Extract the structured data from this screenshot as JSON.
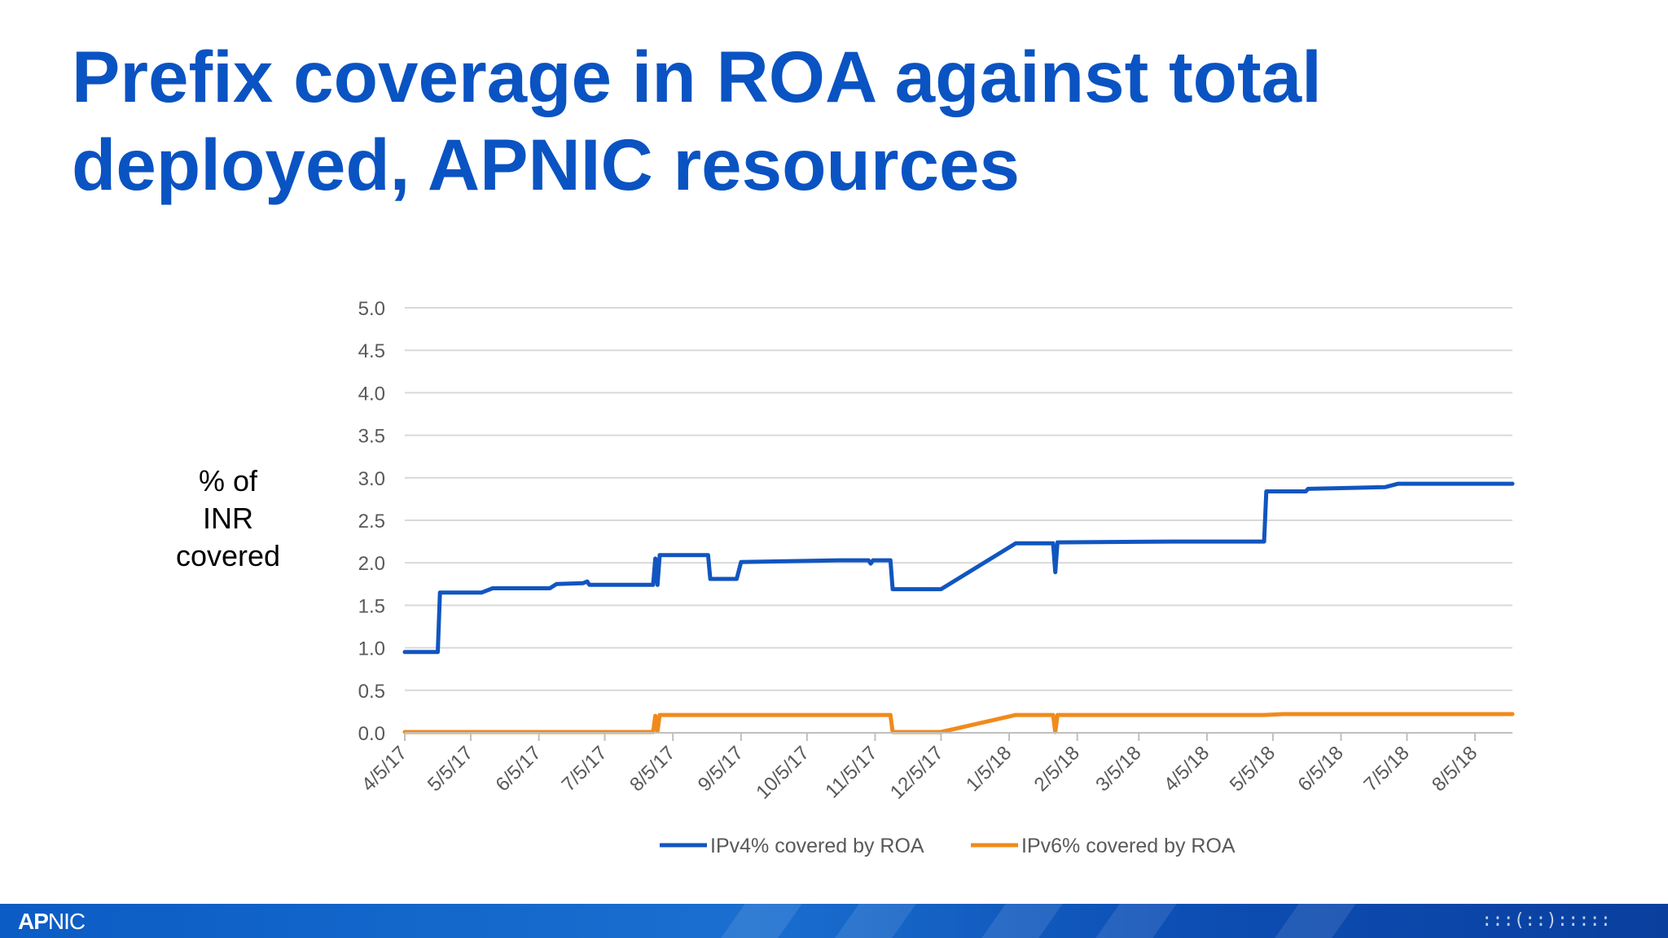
{
  "slide": {
    "title": "Prefix coverage in ROA against total deployed, APNIC resources"
  },
  "footer": {
    "logo_bold": "AP",
    "logo_rest": "NIC",
    "mark_icon": "ipv6-logo-icon"
  },
  "colors": {
    "title": "#0a53c2",
    "ipv4": "#1155c0",
    "ipv6": "#f08a1c",
    "grid": "#d9d9d9"
  },
  "chart_data": {
    "type": "line",
    "ylabel": "% of INR covered",
    "ylabel_lines": [
      "% of",
      "INR",
      "covered"
    ],
    "ylim": [
      0,
      5
    ],
    "yticks": [
      "0.0",
      "0.5",
      "1.0",
      "1.5",
      "2.0",
      "2.5",
      "3.0",
      "3.5",
      "4.0",
      "4.5",
      "5.0"
    ],
    "grid": true,
    "legend": "bottom",
    "xlim": [
      "2017-04-05",
      "2018-08-22"
    ],
    "xtick_values": [
      "2017-04-05",
      "2017-05-05",
      "2017-06-05",
      "2017-07-05",
      "2017-08-05",
      "2017-09-05",
      "2017-10-05",
      "2017-11-05",
      "2017-12-05",
      "2018-01-05",
      "2018-02-05",
      "2018-03-05",
      "2018-04-05",
      "2018-05-05",
      "2018-06-05",
      "2018-07-05",
      "2018-08-05"
    ],
    "xtick_labels": [
      "4/5/17",
      "5/5/17",
      "6/5/17",
      "7/5/17",
      "8/5/17",
      "9/5/17",
      "10/5/17",
      "11/5/17",
      "12/5/17",
      "1/5/18",
      "2/5/18",
      "3/5/18",
      "4/5/18",
      "5/5/18",
      "6/5/18",
      "7/5/18",
      "8/5/18"
    ],
    "series": [
      {
        "name": "IPv4% covered by ROA",
        "points": [
          [
            "2017-04-05",
            0.95
          ],
          [
            "2017-04-20",
            0.95
          ],
          [
            "2017-04-21",
            1.65
          ],
          [
            "2017-05-10",
            1.65
          ],
          [
            "2017-05-15",
            1.7
          ],
          [
            "2017-06-10",
            1.7
          ],
          [
            "2017-06-13",
            1.75
          ],
          [
            "2017-06-25",
            1.76
          ],
          [
            "2017-06-27",
            1.78
          ],
          [
            "2017-06-28",
            1.74
          ],
          [
            "2017-07-27",
            1.74
          ],
          [
            "2017-07-28",
            2.05
          ],
          [
            "2017-07-29",
            1.74
          ],
          [
            "2017-07-30",
            2.09
          ],
          [
            "2017-08-21",
            2.09
          ],
          [
            "2017-08-22",
            1.81
          ],
          [
            "2017-09-03",
            1.81
          ],
          [
            "2017-09-05",
            2.01
          ],
          [
            "2017-10-20",
            2.03
          ],
          [
            "2017-11-02",
            2.03
          ],
          [
            "2017-11-03",
            1.99
          ],
          [
            "2017-11-04",
            2.03
          ],
          [
            "2017-11-12",
            2.03
          ],
          [
            "2017-11-13",
            1.69
          ],
          [
            "2017-12-05",
            1.69
          ],
          [
            "2018-01-08",
            2.23
          ],
          [
            "2018-01-25",
            2.23
          ],
          [
            "2018-01-26",
            1.89
          ],
          [
            "2018-01-27",
            2.24
          ],
          [
            "2018-03-20",
            2.25
          ],
          [
            "2018-05-01",
            2.25
          ],
          [
            "2018-05-02",
            2.84
          ],
          [
            "2018-05-20",
            2.84
          ],
          [
            "2018-05-21",
            2.87
          ],
          [
            "2018-06-25",
            2.89
          ],
          [
            "2018-07-01",
            2.93
          ],
          [
            "2018-07-31",
            2.93
          ],
          [
            "2018-08-22",
            2.93
          ]
        ]
      },
      {
        "name": "IPv6% covered by ROA",
        "points": [
          [
            "2017-04-05",
            0.01
          ],
          [
            "2017-07-27",
            0.01
          ],
          [
            "2017-07-28",
            0.2
          ],
          [
            "2017-07-29",
            0.02
          ],
          [
            "2017-07-30",
            0.21
          ],
          [
            "2017-11-12",
            0.21
          ],
          [
            "2017-11-13",
            0.01
          ],
          [
            "2017-12-05",
            0.01
          ],
          [
            "2018-01-08",
            0.21
          ],
          [
            "2018-01-25",
            0.21
          ],
          [
            "2018-01-26",
            0.01
          ],
          [
            "2018-01-27",
            0.21
          ],
          [
            "2018-05-01",
            0.21
          ],
          [
            "2018-05-10",
            0.22
          ],
          [
            "2018-08-22",
            0.22
          ]
        ]
      }
    ]
  }
}
